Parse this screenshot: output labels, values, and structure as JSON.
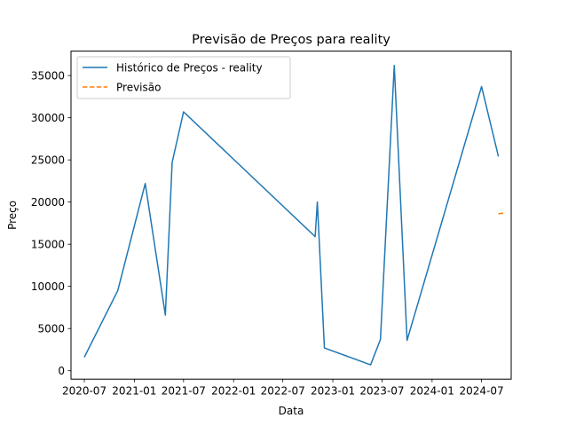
{
  "chart_data": {
    "type": "line",
    "title": "Previsão de Preços para reality",
    "xlabel": "Data",
    "ylabel": "Preço",
    "xlim": [
      "2020-05-13",
      "2024-10-18"
    ],
    "ylim": [
      -1000,
      37900
    ],
    "x_ticks": [
      "2020-07-01",
      "2021-01-01",
      "2021-07-01",
      "2022-01-01",
      "2022-07-01",
      "2023-01-01",
      "2023-07-01",
      "2024-01-01",
      "2024-07-01"
    ],
    "x_tick_labels": [
      "2020-07",
      "2021-01",
      "2021-07",
      "2022-01",
      "2022-07",
      "2023-01",
      "2023-07",
      "2024-01",
      "2024-07"
    ],
    "y_ticks": [
      0,
      5000,
      10000,
      15000,
      20000,
      25000,
      30000,
      35000
    ],
    "y_tick_labels": [
      "0",
      "5000",
      "10000",
      "15000",
      "20000",
      "25000",
      "30000",
      "35000"
    ],
    "grid": false,
    "legend_position": "top-left",
    "series": [
      {
        "name": "Histórico de Preços - reality",
        "color": "#1f77b4",
        "style": "solid",
        "points": [
          [
            "2020-07-01",
            1600
          ],
          [
            "2020-11-01",
            9500
          ],
          [
            "2021-02-10",
            22200
          ],
          [
            "2021-04-25",
            6600
          ],
          [
            "2021-05-20",
            24700
          ],
          [
            "2021-07-01",
            30700
          ],
          [
            "2022-10-28",
            15900
          ],
          [
            "2022-11-05",
            20000
          ],
          [
            "2022-12-01",
            2700
          ],
          [
            "2023-05-20",
            700
          ],
          [
            "2023-06-25",
            3700
          ],
          [
            "2023-08-15",
            36200
          ],
          [
            "2023-10-01",
            3600
          ],
          [
            "2024-07-01",
            33700
          ],
          [
            "2024-09-01",
            25400
          ]
        ]
      },
      {
        "name": "Previsão",
        "color": "#ff7f0e",
        "style": "dashed",
        "points": [
          [
            "2024-09-01",
            18600
          ],
          [
            "2024-09-10",
            18650
          ],
          [
            "2024-09-20",
            18700
          ]
        ]
      }
    ]
  }
}
